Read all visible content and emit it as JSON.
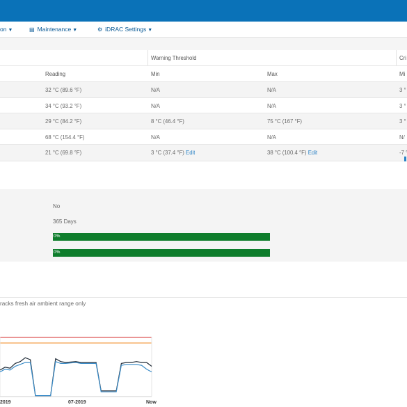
{
  "menu": {
    "item1_partial": "on",
    "maintenance": "Maintenance",
    "idrac_settings": "iDRAC Settings"
  },
  "table": {
    "warning_threshold": "Warning Threshold",
    "critical_partial": "Cri",
    "columns": {
      "reading": "Reading",
      "min": "Min",
      "max": "Max",
      "crit_min_partial": "Mi"
    },
    "rows": [
      {
        "reading": "32 °C (89.6 °F)",
        "min": "N/A",
        "max": "N/A",
        "crit": "3 °",
        "min_edit": "",
        "max_edit": ""
      },
      {
        "reading": "34 °C (93.2 °F)",
        "min": "N/A",
        "max": "N/A",
        "crit": "3 °",
        "min_edit": "",
        "max_edit": ""
      },
      {
        "reading": "29 °C (84.2 °F)",
        "min": "8 °C (46.4 °F)",
        "max": "75 °C (167 °F)",
        "crit": "3 °",
        "min_edit": "",
        "max_edit": ""
      },
      {
        "reading": "68 °C (154.4 °F)",
        "min": "N/A",
        "max": "N/A",
        "crit": "N/",
        "min_edit": "",
        "max_edit": ""
      },
      {
        "reading": "21 °C (69.8 °F)",
        "min": "3 °C (37.4 °F)",
        "max": "38 °C (100.4 °F)",
        "crit": "-7 °",
        "min_edit": "Edit",
        "max_edit": "Edit"
      }
    ]
  },
  "panel": {
    "value1": "No",
    "value2": "365 Days",
    "bar1_label": "0%",
    "bar1_fraction": 1.0,
    "bar2_label": "0%",
    "bar2_fraction": 1.0
  },
  "note": "racks fresh air ambient range only",
  "chart_data": {
    "type": "line",
    "x_tick_labels": [
      "2019",
      "07-2019",
      "Now"
    ],
    "threshold_colors": {
      "upper": "#d62b2b",
      "warning": "#f08a1c"
    },
    "series": [
      {
        "color": "#1f2a36",
        "values": [
          0.56,
          0.62,
          0.6,
          0.7,
          0.74,
          0.82,
          0.78,
          0.02,
          0.02,
          0.02,
          0.02,
          0.8,
          0.74,
          0.72,
          0.73,
          0.74,
          0.72,
          0.72,
          0.72,
          0.72,
          0.12,
          0.12,
          0.12,
          0.12,
          0.7,
          0.72,
          0.72,
          0.74,
          0.72,
          0.72,
          0.64
        ]
      },
      {
        "color": "#3a8cc8",
        "values": [
          0.52,
          0.58,
          0.56,
          0.64,
          0.68,
          0.72,
          0.72,
          0.02,
          0.02,
          0.02,
          0.02,
          0.74,
          0.7,
          0.7,
          0.71,
          0.72,
          0.7,
          0.7,
          0.7,
          0.7,
          0.1,
          0.1,
          0.1,
          0.1,
          0.66,
          0.68,
          0.68,
          0.68,
          0.66,
          0.58,
          0.52
        ]
      }
    ]
  }
}
